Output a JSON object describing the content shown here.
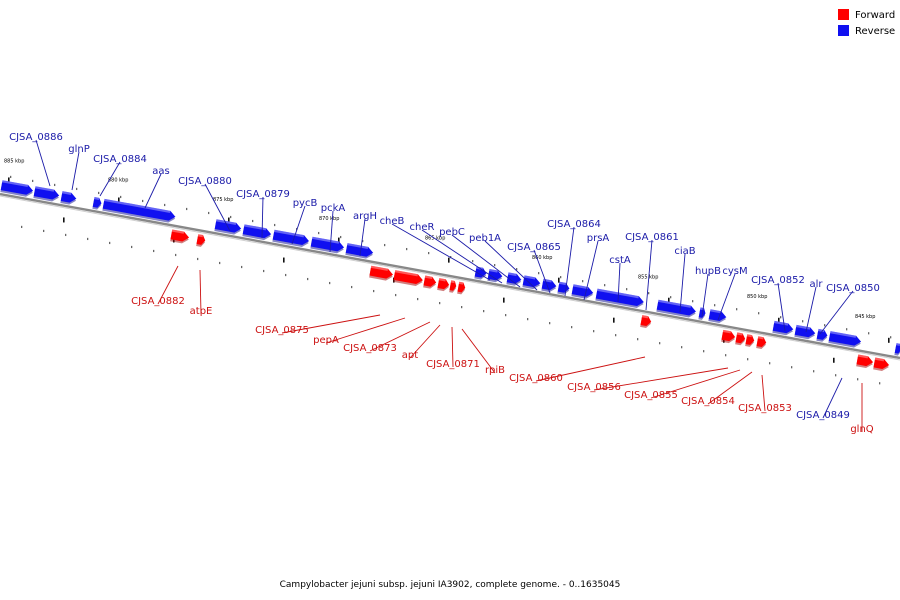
{
  "colors": {
    "forward": "#ff0000",
    "reverse": "#1010f0",
    "forward_text": "#cc1111",
    "reverse_text": "#1a1aa8",
    "backbone": "#777777"
  },
  "legend": [
    {
      "label": "Forward",
      "color": "#ff0000"
    },
    {
      "label": "Reverse",
      "color": "#1010f0"
    }
  ],
  "caption": "Campylobacter jejuni subsp. jejuni IA3902, complete genome. - 0..1635045",
  "kbp_marks": [
    "885 kbp",
    "880 kbp",
    "875 kbp",
    "870 kbp",
    "865 kbp",
    "860 kbp",
    "855 kbp",
    "850 kbp",
    "845 kbp"
  ],
  "reverse_genes": [
    "CJSA_0886",
    "glnP",
    "CJSA_0884",
    "aas",
    "CJSA_0880",
    "CJSA_0879",
    "pycB",
    "pckA",
    "argH",
    "cheB",
    "cheR",
    "pebC",
    "peb1A",
    "CJSA_0865",
    "CJSA_0864",
    "prsA",
    "cstA",
    "CJSA_0861",
    "ciaB",
    "hupB",
    "cysM",
    "CJSA_0852",
    "alr",
    "CJSA_0850",
    "CJSA_0849"
  ],
  "forward_genes": [
    "CJSA_0882",
    "atpE",
    "CJSA_0875",
    "pepA",
    "CJSA_0873",
    "apt",
    "CJSA_0871",
    "rpiB",
    "CJSA_0860",
    "CJSA_0856",
    "CJSA_0855",
    "CJSA_0854",
    "CJSA_0853",
    "glnQ"
  ]
}
